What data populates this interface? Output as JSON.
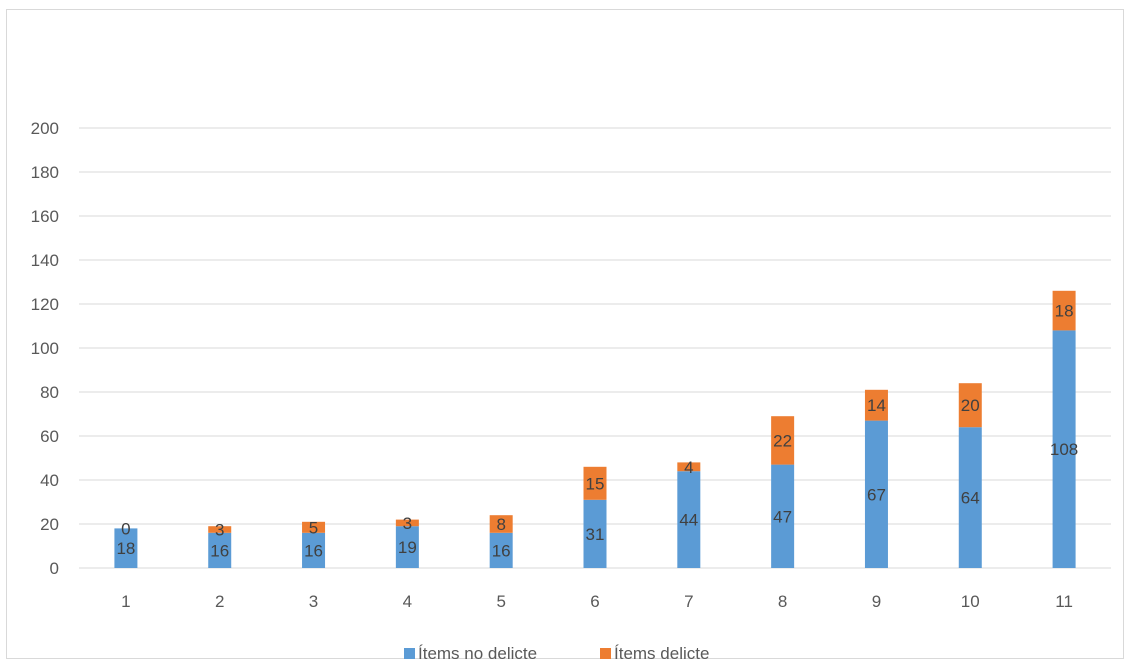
{
  "colors": {
    "no_delicte": "#5b9bd5",
    "delicte": "#ed7d31",
    "grid": "#d9d9d9"
  },
  "chart_data": {
    "type": "bar",
    "stacked": true,
    "categories": [
      "1",
      "2",
      "3",
      "4",
      "5",
      "6",
      "7",
      "8",
      "9",
      "10",
      "11"
    ],
    "series": [
      {
        "name": "Ítems no delicte",
        "values": [
          18,
          16,
          16,
          19,
          16,
          31,
          44,
          47,
          67,
          64,
          108
        ]
      },
      {
        "name": "Ítems delicte",
        "values": [
          0,
          3,
          5,
          3,
          8,
          15,
          4,
          22,
          14,
          20,
          18
        ]
      }
    ],
    "ylim": [
      0,
      200
    ],
    "yticks": [
      "0",
      "20",
      "40",
      "60",
      "80",
      "100",
      "120",
      "140",
      "160",
      "180",
      "200"
    ],
    "grid": true,
    "legend": "bottom"
  }
}
